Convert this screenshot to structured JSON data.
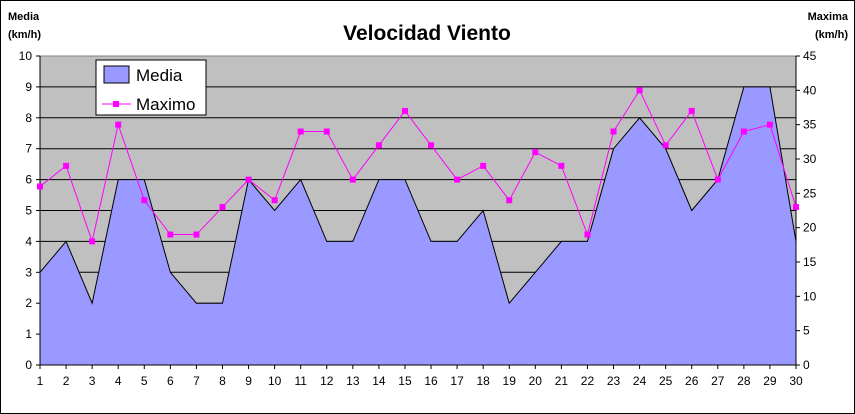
{
  "chart_data": {
    "type": "area",
    "title": "Velocidad Viento",
    "ylabel_left": [
      "Media",
      "(km/h)"
    ],
    "ylabel_right": [
      "Maxima",
      "(km/h)"
    ],
    "x": [
      1,
      2,
      3,
      4,
      5,
      6,
      7,
      8,
      9,
      10,
      11,
      12,
      13,
      14,
      15,
      16,
      17,
      18,
      19,
      20,
      21,
      22,
      23,
      24,
      25,
      26,
      27,
      28,
      29,
      30
    ],
    "ylim_left": [
      0,
      10
    ],
    "ylim_right": [
      0,
      45
    ],
    "yticks_left": [
      0,
      1,
      2,
      3,
      4,
      5,
      6,
      7,
      8,
      9,
      10
    ],
    "yticks_right": [
      0,
      5,
      10,
      15,
      20,
      25,
      30,
      35,
      40,
      45
    ],
    "grid": true,
    "legend_position": "top-left",
    "series": [
      {
        "name": "Media",
        "axis": "left",
        "style": "area",
        "color": "#9999ff",
        "values": [
          3,
          4,
          2,
          6,
          6,
          3,
          2,
          2,
          6,
          5,
          6,
          4,
          4,
          6,
          6,
          4,
          4,
          5,
          2,
          3,
          4,
          4,
          7,
          8,
          7,
          5,
          6,
          9,
          9,
          4
        ]
      },
      {
        "name": "Maximo",
        "axis": "right",
        "style": "line-markers",
        "color": "#ff00ff",
        "values": [
          26,
          29,
          18,
          35,
          24,
          19,
          19,
          23,
          27,
          24,
          34,
          34,
          27,
          32,
          37,
          32,
          27,
          29,
          24,
          31,
          29,
          19,
          34,
          40,
          32,
          37,
          27,
          34,
          35,
          23
        ]
      }
    ],
    "plot_background": "#c0c0c0"
  }
}
